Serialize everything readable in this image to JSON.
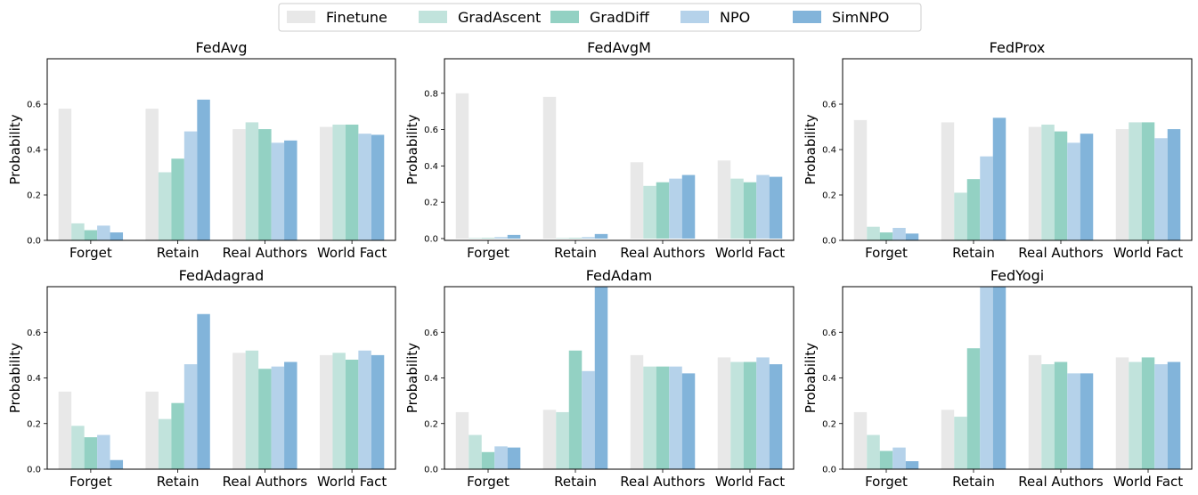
{
  "legend": {
    "placement": "top-center",
    "items": [
      {
        "label": "Finetune",
        "color": "#e8e8e8"
      },
      {
        "label": "GradAscent",
        "color": "#c1e3dc"
      },
      {
        "label": "GradDiff",
        "color": "#93d1c3"
      },
      {
        "label": "NPO",
        "color": "#b5d2ea"
      },
      {
        "label": "SimNPO",
        "color": "#82b4da"
      }
    ]
  },
  "chart_data": [
    {
      "type": "bar",
      "title": "FedAvg",
      "ylabel": "Probability",
      "categories": [
        "Forget",
        "Retain",
        "Real Authors",
        "World Fact"
      ],
      "ylim": [
        0,
        0.8
      ],
      "yticks": [
        0.0,
        0.2,
        0.4,
        0.6
      ],
      "series": [
        {
          "name": "Finetune",
          "values": [
            0.58,
            0.58,
            0.49,
            0.5
          ]
        },
        {
          "name": "GradAscent",
          "values": [
            0.075,
            0.3,
            0.52,
            0.51
          ]
        },
        {
          "name": "GradDiff",
          "values": [
            0.045,
            0.36,
            0.49,
            0.51
          ]
        },
        {
          "name": "NPO",
          "values": [
            0.065,
            0.48,
            0.43,
            0.47
          ]
        },
        {
          "name": "SimNPO",
          "values": [
            0.035,
            0.62,
            0.44,
            0.465
          ]
        }
      ]
    },
    {
      "type": "bar",
      "title": "FedAvgM",
      "ylabel": "Probability",
      "categories": [
        "Forget",
        "Retain",
        "Real Authors",
        "World Fact"
      ],
      "ylim": [
        -0.01,
        0.99
      ],
      "yticks": [
        0.0,
        0.2,
        0.4,
        0.6,
        0.8
      ],
      "series": [
        {
          "name": "Finetune",
          "values": [
            0.8,
            0.78,
            0.42,
            0.43
          ]
        },
        {
          "name": "GradAscent",
          "values": [
            0.003,
            0.003,
            0.29,
            0.33
          ]
        },
        {
          "name": "GradDiff",
          "values": [
            0.003,
            0.003,
            0.31,
            0.31
          ]
        },
        {
          "name": "NPO",
          "values": [
            0.008,
            0.008,
            0.33,
            0.35
          ]
        },
        {
          "name": "SimNPO",
          "values": [
            0.02,
            0.025,
            0.35,
            0.34
          ]
        }
      ]
    },
    {
      "type": "bar",
      "title": "FedProx",
      "ylabel": "Probability",
      "categories": [
        "Forget",
        "Retain",
        "Real Authors",
        "World Fact"
      ],
      "ylim": [
        0,
        0.8
      ],
      "yticks": [
        0.0,
        0.2,
        0.4,
        0.6
      ],
      "series": [
        {
          "name": "Finetune",
          "values": [
            0.53,
            0.52,
            0.5,
            0.49
          ]
        },
        {
          "name": "GradAscent",
          "values": [
            0.06,
            0.21,
            0.51,
            0.52
          ]
        },
        {
          "name": "GradDiff",
          "values": [
            0.035,
            0.27,
            0.48,
            0.52
          ]
        },
        {
          "name": "NPO",
          "values": [
            0.055,
            0.37,
            0.43,
            0.45
          ]
        },
        {
          "name": "SimNPO",
          "values": [
            0.03,
            0.54,
            0.47,
            0.49
          ]
        }
      ]
    },
    {
      "type": "bar",
      "title": "FedAdagrad",
      "ylabel": "Probability",
      "categories": [
        "Forget",
        "Retain",
        "Real Authors",
        "World Fact"
      ],
      "ylim": [
        0,
        0.8
      ],
      "yticks": [
        0.0,
        0.2,
        0.4,
        0.6
      ],
      "series": [
        {
          "name": "Finetune",
          "values": [
            0.34,
            0.34,
            0.51,
            0.5
          ]
        },
        {
          "name": "GradAscent",
          "values": [
            0.19,
            0.22,
            0.52,
            0.51
          ]
        },
        {
          "name": "GradDiff",
          "values": [
            0.14,
            0.29,
            0.44,
            0.48
          ]
        },
        {
          "name": "NPO",
          "values": [
            0.15,
            0.46,
            0.45,
            0.52
          ]
        },
        {
          "name": "SimNPO",
          "values": [
            0.04,
            0.68,
            0.47,
            0.5
          ]
        }
      ]
    },
    {
      "type": "bar",
      "title": "FedAdam",
      "ylabel": "Probability",
      "categories": [
        "Forget",
        "Retain",
        "Real Authors",
        "World Fact"
      ],
      "ylim": [
        0,
        0.8
      ],
      "yticks": [
        0.0,
        0.2,
        0.4,
        0.6
      ],
      "series": [
        {
          "name": "Finetune",
          "values": [
            0.25,
            0.26,
            0.5,
            0.49
          ]
        },
        {
          "name": "GradAscent",
          "values": [
            0.15,
            0.25,
            0.45,
            0.47
          ]
        },
        {
          "name": "GradDiff",
          "values": [
            0.075,
            0.52,
            0.45,
            0.47
          ]
        },
        {
          "name": "NPO",
          "values": [
            0.1,
            0.43,
            0.45,
            0.49
          ]
        },
        {
          "name": "SimNPO",
          "values": [
            0.095,
            0.85,
            0.42,
            0.46
          ]
        }
      ]
    },
    {
      "type": "bar",
      "title": "FedYogi",
      "ylabel": "Probability",
      "categories": [
        "Forget",
        "Retain",
        "Real Authors",
        "World Fact"
      ],
      "ylim": [
        0,
        0.8
      ],
      "yticks": [
        0.0,
        0.2,
        0.4,
        0.6
      ],
      "series": [
        {
          "name": "Finetune",
          "values": [
            0.25,
            0.26,
            0.5,
            0.49
          ]
        },
        {
          "name": "GradAscent",
          "values": [
            0.15,
            0.23,
            0.46,
            0.47
          ]
        },
        {
          "name": "GradDiff",
          "values": [
            0.08,
            0.53,
            0.47,
            0.49
          ]
        },
        {
          "name": "NPO",
          "values": [
            0.095,
            0.85,
            0.42,
            0.46
          ]
        },
        {
          "name": "SimNPO",
          "values": [
            0.035,
            0.85,
            0.42,
            0.47
          ]
        }
      ]
    }
  ]
}
